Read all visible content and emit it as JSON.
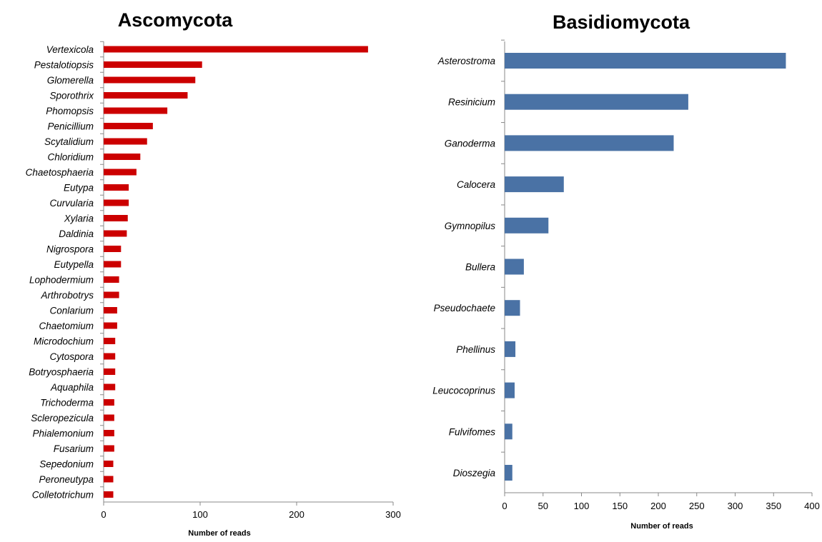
{
  "chart_data": [
    {
      "type": "bar",
      "orientation": "horizontal",
      "title": "Ascomycota",
      "xlabel": "Number of reads",
      "ylabel": "",
      "xlim": [
        0,
        300
      ],
      "ticks": [
        "0",
        "100",
        "200",
        "300"
      ],
      "grid": false,
      "color": "#cc0000",
      "categories": [
        "Vertexicola",
        "Pestalotiopsis",
        "Glomerella",
        "Sporothrix",
        "Phomopsis",
        "Penicillium",
        "Scytalidium",
        "Chloridium",
        "Chaetosphaeria",
        "Eutypa",
        "Curvularia",
        "Xylaria",
        "Daldinia",
        "Nigrospora",
        "Eutypella",
        "Lophodermium",
        "Arthrobotrys",
        "Conlarium",
        "Chaetomium",
        "Microdochium",
        "Cytospora",
        "Botryosphaeria",
        "Aquaphila",
        "Trichoderma",
        "Scleropezicula",
        "Phialemonium",
        "Fusarium",
        "Sepedonium",
        "Peroneutypa",
        "Colletotrichum"
      ],
      "values": [
        274,
        102,
        95,
        87,
        66,
        51,
        45,
        38,
        34,
        26,
        26,
        25,
        24,
        18,
        18,
        16,
        16,
        14,
        14,
        12,
        12,
        12,
        12,
        11,
        11,
        11,
        11,
        10,
        10,
        10
      ]
    },
    {
      "type": "bar",
      "orientation": "horizontal",
      "title": "Basidiomycota",
      "xlabel": "Number of reads",
      "ylabel": "",
      "xlim": [
        0,
        400
      ],
      "ticks": [
        "0",
        "50",
        "100",
        "150",
        "200",
        "250",
        "300",
        "350",
        "400"
      ],
      "grid": false,
      "color": "#4a72a5",
      "categories": [
        "Asterostroma",
        "Resinicium",
        "Ganoderma",
        "Calocera",
        "Gymnopilus",
        "Bullera",
        "Pseudochaete",
        "Phellinus",
        "Leucocoprinus",
        "Fulvifomes",
        "Dioszegia"
      ],
      "values": [
        366,
        239,
        220,
        77,
        57,
        25,
        20,
        14,
        13,
        10,
        10
      ]
    }
  ]
}
